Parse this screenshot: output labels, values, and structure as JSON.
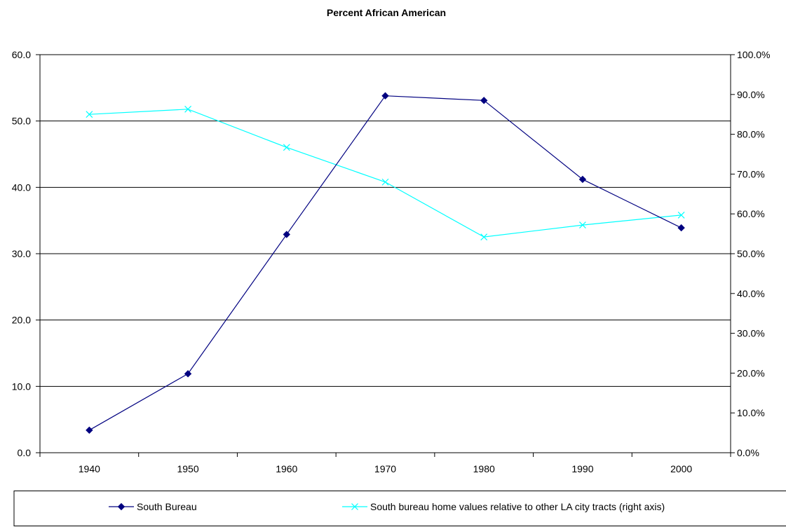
{
  "chart_data": {
    "type": "line",
    "title": "Percent African American",
    "categories": [
      "1940",
      "1950",
      "1960",
      "1970",
      "1980",
      "1990",
      "2000"
    ],
    "y_left": {
      "ylim": [
        0,
        60
      ],
      "ticks": [
        0,
        10,
        20,
        30,
        40,
        50,
        60
      ],
      "tick_labels": [
        "0.0",
        "10.0",
        "20.0",
        "30.0",
        "40.0",
        "50.0",
        "60.0"
      ]
    },
    "y_right": {
      "ylim": [
        0,
        100
      ],
      "ticks": [
        0,
        10,
        20,
        30,
        40,
        50,
        60,
        70,
        80,
        90,
        100
      ],
      "tick_labels": [
        "0.0%",
        "10.0%",
        "20.0%",
        "30.0%",
        "40.0%",
        "50.0%",
        "60.0%",
        "70.0%",
        "80.0%",
        "90.0%",
        "100.0%"
      ]
    },
    "gridlines": "horizontal, left axis",
    "legend_position": "bottom",
    "series": [
      {
        "name": "South Bureau",
        "axis": "left",
        "marker": "diamond",
        "color": "#000080",
        "values": [
          3.4,
          11.9,
          32.9,
          53.8,
          53.1,
          41.2,
          33.9
        ]
      },
      {
        "name": "South bureau home values relative to other LA city tracts (right axis)",
        "axis": "right",
        "marker": "x",
        "color": "#00FFFF",
        "values": [
          85.0,
          86.3,
          76.7,
          68.0,
          54.2,
          57.2,
          59.7
        ]
      }
    ]
  }
}
